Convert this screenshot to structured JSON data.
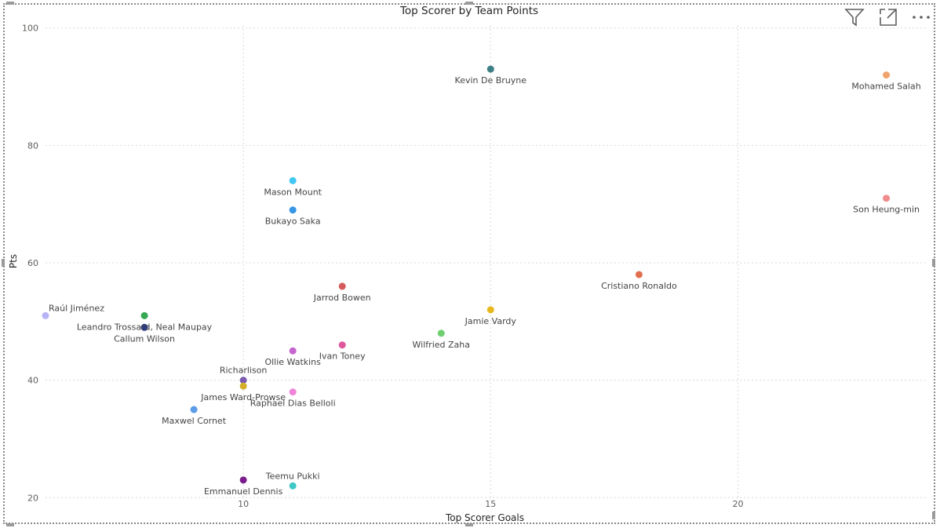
{
  "visual": {
    "title": "Top Scorer by Team Points",
    "toolbar": {
      "filter_icon": "filter-icon",
      "focus_icon": "focus-mode-icon",
      "more_icon": "more-options-icon"
    }
  },
  "chart_data": {
    "type": "scatter",
    "title": "Top Scorer by Team Points",
    "xlabel": "Top Scorer Goals",
    "ylabel": "Pts",
    "xlim": [
      6,
      23.8
    ],
    "ylim": [
      19.5,
      100.5
    ],
    "xticks": [
      10,
      15,
      20
    ],
    "yticks": [
      20,
      40,
      60,
      80,
      100
    ],
    "grid": true,
    "points": [
      {
        "label": "Kevin De Bruyne",
        "x": 15,
        "y": 93,
        "color": "#3D7F85",
        "label_pos": "below"
      },
      {
        "label": "Mohamed Salah",
        "x": 23,
        "y": 92,
        "color": "#F0A36C",
        "label_pos": "below"
      },
      {
        "label": "Mason Mount",
        "x": 11,
        "y": 74,
        "color": "#41C7F2",
        "label_pos": "below"
      },
      {
        "label": "Son Heung-min",
        "x": 23,
        "y": 71,
        "color": "#F08C8C",
        "label_pos": "below"
      },
      {
        "label": "Bukayo Saka",
        "x": 11,
        "y": 69,
        "color": "#3796E6",
        "label_pos": "below"
      },
      {
        "label": "Cristiano Ronaldo",
        "x": 18,
        "y": 58,
        "color": "#E07050",
        "label_pos": "below"
      },
      {
        "label": "Jarrod Bowen",
        "x": 12,
        "y": 56,
        "color": "#D65A5A",
        "label_pos": "below"
      },
      {
        "label": "Jamie Vardy",
        "x": 15,
        "y": 52,
        "color": "#E8B820",
        "label_pos": "below"
      },
      {
        "label": "Raúl Jiménez",
        "x": 6,
        "y": 51,
        "color": "#B7B4F5",
        "label_pos": "above-right"
      },
      {
        "label": "Leandro Trossard, Neal Maupay",
        "x": 8,
        "y": 51,
        "color": "#34A853",
        "label_pos": "below"
      },
      {
        "label": "Callum Wilson",
        "x": 8,
        "y": 49,
        "color": "#2B3A8A",
        "label_pos": "below"
      },
      {
        "label": "Wilfried Zaha",
        "x": 14,
        "y": 48,
        "color": "#6ECF6E",
        "label_pos": "below"
      },
      {
        "label": "Ivan Toney",
        "x": 12,
        "y": 46,
        "color": "#E0559B",
        "label_pos": "below"
      },
      {
        "label": "Ollie Watkins",
        "x": 11,
        "y": 45,
        "color": "#C566D0",
        "label_pos": "below"
      },
      {
        "label": "Richarlison",
        "x": 10,
        "y": 40,
        "color": "#7A5BB0",
        "label_pos": "above"
      },
      {
        "label": "James Ward-Prowse",
        "x": 10,
        "y": 39,
        "color": "#D4AE2A",
        "label_pos": "below"
      },
      {
        "label": "Raphael Dias Belloli",
        "x": 11,
        "y": 38,
        "color": "#F084D8",
        "label_pos": "below"
      },
      {
        "label": "Maxwel Cornet",
        "x": 9,
        "y": 35,
        "color": "#5B9BE8",
        "label_pos": "below"
      },
      {
        "label": "Emmanuel Dennis",
        "x": 10,
        "y": 23,
        "color": "#7B1C8C",
        "label_pos": "below"
      },
      {
        "label": "Teemu Pukki",
        "x": 11,
        "y": 22,
        "color": "#3FC8C8",
        "label_pos": "above"
      }
    ]
  }
}
